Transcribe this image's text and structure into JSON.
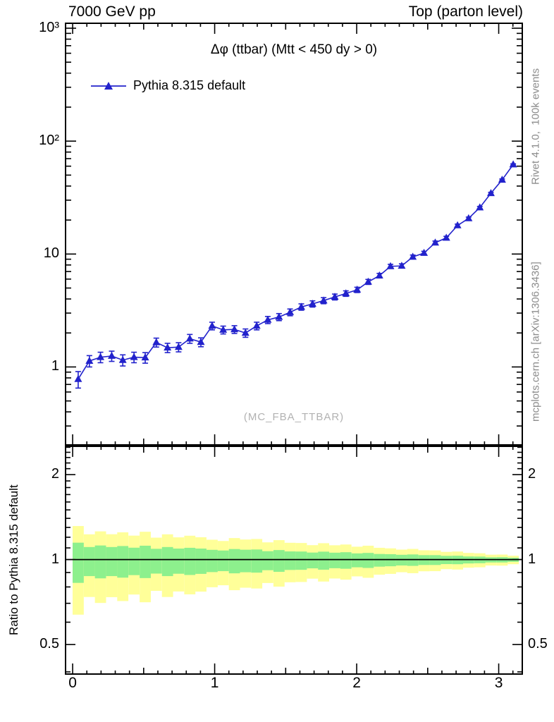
{
  "header": {
    "left_title": "7000 GeV pp",
    "right_title": "Top (parton level)"
  },
  "main_panel_texts": {
    "title": "Δφ (ttbar) (Mtt < 450 dy > 0)",
    "watermark": "(MC_FBA_TTBAR)"
  },
  "side_texts": {
    "top": "Rivet 4.1.0,  100k events",
    "bottom": "mcplots.cern.ch [arXiv:1306.3436]"
  },
  "ratio_panel_texts": {
    "ylabel": "Ratio to Pythia 8.315 default"
  },
  "legend": {
    "entries": [
      {
        "label": "Pythia 8.315 default",
        "marker": "filled-triangle",
        "color": "#2222cc"
      }
    ]
  },
  "colors": {
    "series_blue": "#2222cc",
    "band_yellow": "#ffff99",
    "band_green": "#8df08d",
    "frame_black": "#000000",
    "gray_text": "#8c8c8c",
    "watermark_gray": "#b2b2b2"
  },
  "chart_data": {
    "type": "line",
    "title": "Δφ (ttbar) (Mtt < 450 dy > 0)",
    "xlabel": "",
    "x_range": [
      -0.05,
      3.166
    ],
    "x_ticks": [
      {
        "v": 0,
        "label": "0"
      },
      {
        "v": 1,
        "label": "1"
      },
      {
        "v": 2,
        "label": "2"
      },
      {
        "v": 3,
        "label": "3"
      }
    ],
    "bin_width": 0.0785,
    "main_panel": {
      "ylog": true,
      "ylim": [
        0.204,
        1106
      ],
      "yticks": [
        {
          "v": 1000,
          "label": "10³"
        },
        {
          "v": 100,
          "label": "10²"
        },
        {
          "v": 10,
          "label": "10"
        },
        {
          "v": 1,
          "label": "1"
        }
      ]
    },
    "series": [
      {
        "name": "Pythia 8.315 default",
        "color": "#2222cc",
        "x": [
          0.039,
          0.118,
          0.196,
          0.275,
          0.353,
          0.432,
          0.511,
          0.589,
          0.668,
          0.746,
          0.825,
          0.903,
          0.982,
          1.06,
          1.139,
          1.217,
          1.296,
          1.374,
          1.453,
          1.531,
          1.61,
          1.689,
          1.767,
          1.846,
          1.924,
          2.003,
          2.081,
          2.16,
          2.238,
          2.317,
          2.395,
          2.474,
          2.553,
          2.631,
          2.71,
          2.788,
          2.867,
          2.945,
          3.024,
          3.102
        ],
        "y": [
          0.78,
          1.13,
          1.22,
          1.25,
          1.15,
          1.22,
          1.21,
          1.65,
          1.48,
          1.5,
          1.78,
          1.66,
          2.31,
          2.13,
          2.15,
          2.0,
          2.31,
          2.61,
          2.77,
          3.05,
          3.4,
          3.62,
          3.87,
          4.17,
          4.47,
          4.82,
          5.67,
          6.44,
          7.78,
          7.85,
          9.43,
          10.2,
          12.6,
          13.9,
          17.9,
          20.7,
          25.8,
          34.5,
          45.4,
          62.0
        ],
        "yerr": [
          0.13,
          0.13,
          0.13,
          0.13,
          0.13,
          0.13,
          0.13,
          0.15,
          0.14,
          0.14,
          0.16,
          0.15,
          0.18,
          0.17,
          0.17,
          0.17,
          0.18,
          0.19,
          0.2,
          0.21,
          0.22,
          0.23,
          0.24,
          0.25,
          0.25,
          0.26,
          0.29,
          0.3,
          0.33,
          0.34,
          0.37,
          0.38,
          0.43,
          0.45,
          0.51,
          0.55,
          0.61,
          0.7,
          0.81,
          0.94
        ]
      }
    ],
    "ratio_panel": {
      "ylog": true,
      "ylim": [
        0.393,
        2.52
      ],
      "reference_line": 1,
      "yticks": [
        {
          "v": 2,
          "label": "2"
        },
        {
          "v": 1,
          "label": "1"
        },
        {
          "v": 0.5,
          "label": "0.5"
        }
      ],
      "bands": {
        "yellow_hi": [
          1.315,
          1.229,
          1.259,
          1.23,
          1.249,
          1.216,
          1.255,
          1.196,
          1.229,
          1.199,
          1.215,
          1.2,
          1.176,
          1.164,
          1.192,
          1.178,
          1.183,
          1.151,
          1.172,
          1.147,
          1.145,
          1.125,
          1.143,
          1.124,
          1.131,
          1.111,
          1.12,
          1.101,
          1.096,
          1.085,
          1.091,
          1.079,
          1.078,
          1.065,
          1.068,
          1.056,
          1.053,
          1.041,
          1.042,
          1.032
        ],
        "yellow_lo": [
          0.638,
          0.737,
          0.702,
          0.736,
          0.713,
          0.752,
          0.706,
          0.775,
          0.737,
          0.771,
          0.753,
          0.77,
          0.798,
          0.811,
          0.779,
          0.795,
          0.79,
          0.826,
          0.802,
          0.831,
          0.833,
          0.856,
          0.836,
          0.857,
          0.849,
          0.872,
          0.862,
          0.884,
          0.89,
          0.902,
          0.895,
          0.909,
          0.91,
          0.925,
          0.922,
          0.936,
          0.939,
          0.953,
          0.952,
          0.963
        ],
        "green_hi": [
          1.148,
          1.108,
          1.122,
          1.108,
          1.117,
          1.102,
          1.12,
          1.092,
          1.108,
          1.094,
          1.101,
          1.094,
          1.083,
          1.077,
          1.09,
          1.084,
          1.086,
          1.071,
          1.081,
          1.069,
          1.068,
          1.059,
          1.067,
          1.058,
          1.062,
          1.052,
          1.056,
          1.047,
          1.045,
          1.04,
          1.043,
          1.037,
          1.037,
          1.031,
          1.032,
          1.026,
          1.025,
          1.019,
          1.02,
          1.015
        ],
        "green_lo": [
          0.827,
          0.874,
          0.858,
          0.874,
          0.863,
          0.881,
          0.86,
          0.892,
          0.874,
          0.891,
          0.882,
          0.89,
          0.903,
          0.91,
          0.894,
          0.902,
          0.899,
          0.917,
          0.905,
          0.919,
          0.92,
          0.931,
          0.921,
          0.932,
          0.928,
          0.939,
          0.934,
          0.944,
          0.947,
          0.953,
          0.95,
          0.957,
          0.957,
          0.964,
          0.963,
          0.969,
          0.971,
          0.977,
          0.977,
          0.982
        ]
      }
    }
  }
}
